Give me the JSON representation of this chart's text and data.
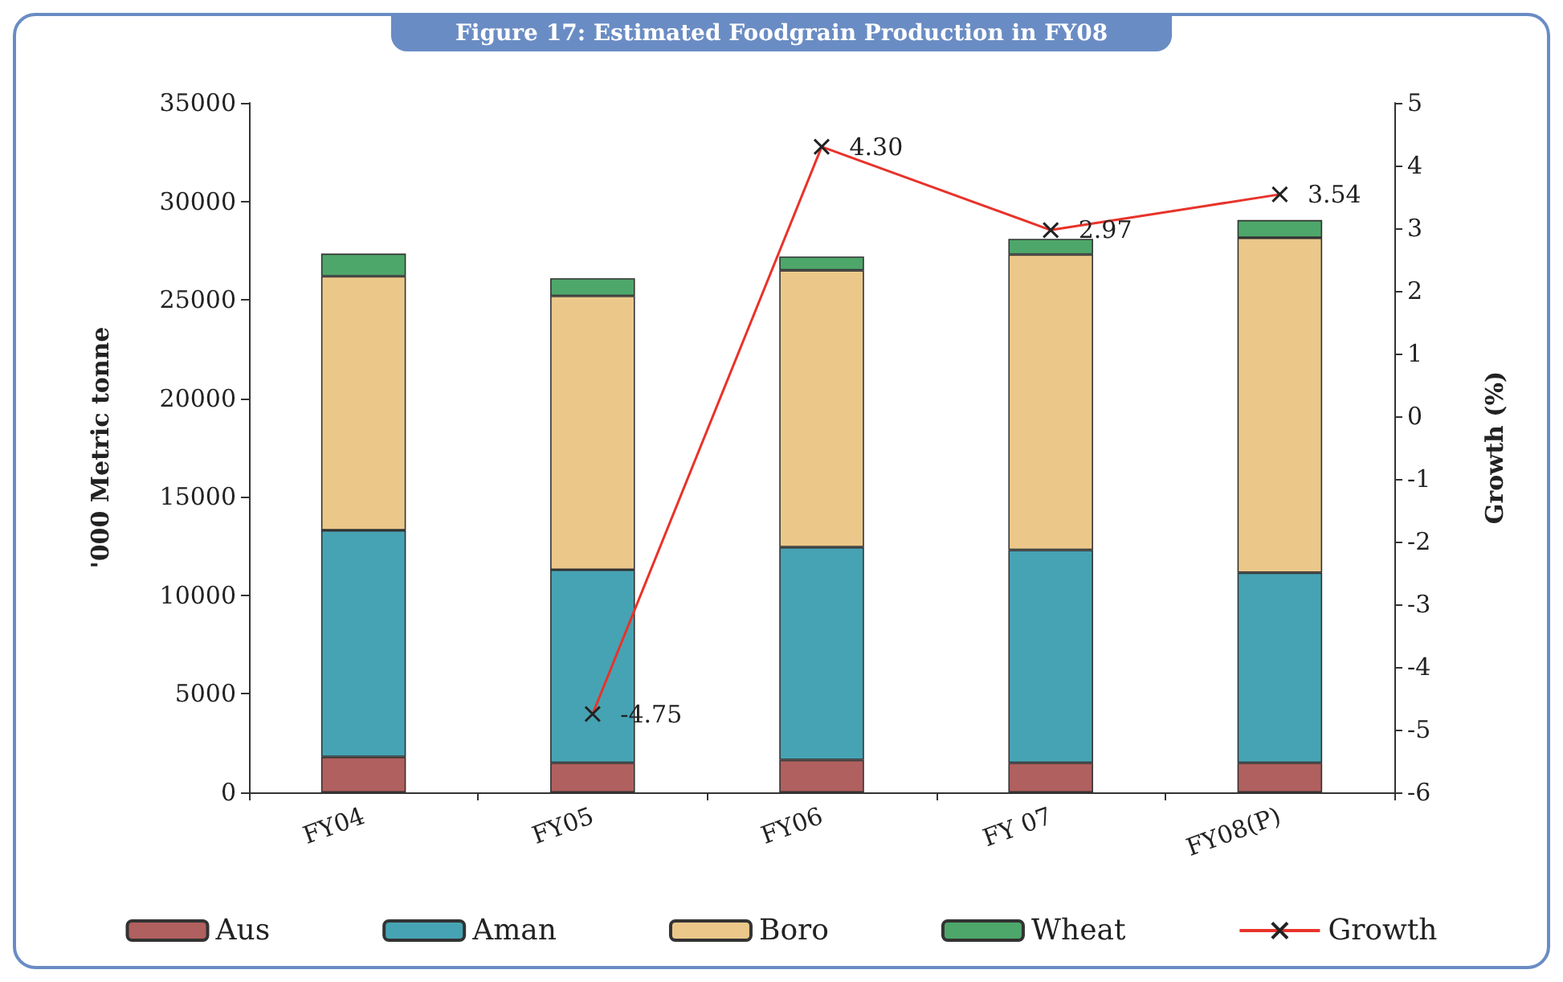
{
  "chart_data": {
    "type": "bar",
    "title": "Figure 17: Estimated Foodgrain Production in FY08",
    "ylabel": "'000 Metric tonne",
    "y2label": "Growth (%)",
    "categories": [
      "FY04",
      "FY05",
      "FY06",
      "FY 07",
      "FY08(P)"
    ],
    "stacked": true,
    "series": [
      {
        "name": "Aus",
        "color": "#b0605f",
        "values": [
          1800,
          1500,
          1650,
          1500,
          1500
        ]
      },
      {
        "name": "Aman",
        "color": "#46a3b3",
        "values": [
          11500,
          9800,
          10800,
          10800,
          9650
        ]
      },
      {
        "name": "Boro",
        "color": "#ebc88a",
        "values": [
          12900,
          13900,
          14050,
          15000,
          17000
        ]
      },
      {
        "name": "Wheat",
        "color": "#4ea76a",
        "values": [
          1150,
          900,
          700,
          800,
          900
        ]
      },
      {
        "name": "Growth",
        "type": "line",
        "axis": "y2",
        "color": "#e8332a",
        "marker": "cross",
        "values": [
          null,
          -4.75,
          4.3,
          2.97,
          3.54
        ],
        "value_labels": [
          null,
          "-4.75",
          "4.30",
          "2.97",
          "3.54"
        ]
      }
    ],
    "ylim": [
      0,
      35000
    ],
    "yticks": [
      0,
      5000,
      10000,
      15000,
      20000,
      25000,
      30000,
      35000
    ],
    "y2lim": [
      -6,
      5
    ],
    "y2ticks": [
      -6,
      -5,
      -4,
      -3,
      -2,
      -1,
      0,
      1,
      2,
      3,
      4,
      5
    ],
    "grid": false,
    "legend": "bottom"
  }
}
